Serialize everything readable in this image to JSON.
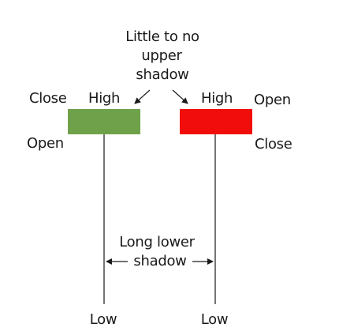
{
  "top_annotation": {
    "line1": "Little to no",
    "line2": "upper",
    "line3": "shadow"
  },
  "bottom_annotation": {
    "line1": "Long lower",
    "line2": "shadow"
  },
  "bullish_candle": {
    "color": "#6fa14b",
    "close_label": "Close",
    "open_label": "Open",
    "high_label": "High",
    "low_label": "Low"
  },
  "bearish_candle": {
    "color": "#f20d0d",
    "open_label": "Open",
    "close_label": "Close",
    "high_label": "High",
    "low_label": "Low"
  }
}
